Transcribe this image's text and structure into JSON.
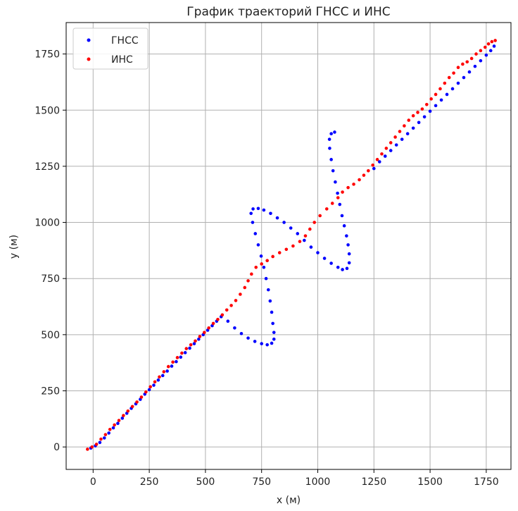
{
  "chart_data": {
    "type": "scatter",
    "title": "График траекторий ГНСС и ИНС",
    "xlabel": "x (м)",
    "ylabel": "y (м)",
    "xlim": [
      -120,
      1860
    ],
    "ylim": [
      -100,
      1890
    ],
    "xticks": [
      0,
      250,
      500,
      750,
      1000,
      1250,
      1500,
      1750
    ],
    "yticks": [
      0,
      250,
      500,
      750,
      1000,
      1250,
      1500,
      1750
    ],
    "grid": true,
    "legend_position": "top-left",
    "series": [
      {
        "name": "ГНСС",
        "color": "#0000ff",
        "points": [
          [
            -10,
            -5
          ],
          [
            10,
            5
          ],
          [
            30,
            20
          ],
          [
            50,
            40
          ],
          [
            70,
            62
          ],
          [
            90,
            85
          ],
          [
            110,
            105
          ],
          [
            130,
            128
          ],
          [
            150,
            150
          ],
          [
            170,
            172
          ],
          [
            190,
            192
          ],
          [
            210,
            212
          ],
          [
            230,
            235
          ],
          [
            250,
            255
          ],
          [
            270,
            275
          ],
          [
            290,
            298
          ],
          [
            310,
            318
          ],
          [
            330,
            338
          ],
          [
            350,
            360
          ],
          [
            370,
            380
          ],
          [
            390,
            400
          ],
          [
            410,
            420
          ],
          [
            430,
            440
          ],
          [
            450,
            460
          ],
          [
            470,
            480
          ],
          [
            490,
            500
          ],
          [
            510,
            520
          ],
          [
            530,
            540
          ],
          [
            550,
            560
          ],
          [
            570,
            580
          ],
          [
            600,
            560
          ],
          [
            630,
            530
          ],
          [
            660,
            505
          ],
          [
            690,
            485
          ],
          [
            720,
            470
          ],
          [
            750,
            460
          ],
          [
            775,
            455
          ],
          [
            795,
            462
          ],
          [
            805,
            480
          ],
          [
            805,
            510
          ],
          [
            800,
            550
          ],
          [
            795,
            600
          ],
          [
            788,
            650
          ],
          [
            780,
            700
          ],
          [
            770,
            750
          ],
          [
            760,
            800
          ],
          [
            748,
            850
          ],
          [
            735,
            900
          ],
          [
            722,
            950
          ],
          [
            710,
            1000
          ],
          [
            703,
            1040
          ],
          [
            712,
            1060
          ],
          [
            735,
            1062
          ],
          [
            760,
            1055
          ],
          [
            790,
            1040
          ],
          [
            820,
            1020
          ],
          [
            850,
            1000
          ],
          [
            880,
            975
          ],
          [
            910,
            950
          ],
          [
            940,
            920
          ],
          [
            970,
            890
          ],
          [
            1000,
            865
          ],
          [
            1030,
            840
          ],
          [
            1060,
            818
          ],
          [
            1090,
            800
          ],
          [
            1110,
            790
          ],
          [
            1130,
            795
          ],
          [
            1140,
            820
          ],
          [
            1140,
            860
          ],
          [
            1135,
            900
          ],
          [
            1128,
            940
          ],
          [
            1118,
            985
          ],
          [
            1108,
            1030
          ],
          [
            1098,
            1080
          ],
          [
            1088,
            1130
          ],
          [
            1078,
            1180
          ],
          [
            1068,
            1230
          ],
          [
            1060,
            1280
          ],
          [
            1053,
            1330
          ],
          [
            1052,
            1370
          ],
          [
            1060,
            1395
          ],
          [
            1075,
            1402
          ],
          [
            1250,
            1240
          ],
          [
            1275,
            1270
          ],
          [
            1300,
            1295
          ],
          [
            1325,
            1320
          ],
          [
            1350,
            1345
          ],
          [
            1375,
            1370
          ],
          [
            1400,
            1395
          ],
          [
            1425,
            1420
          ],
          [
            1450,
            1445
          ],
          [
            1475,
            1470
          ],
          [
            1500,
            1495
          ],
          [
            1525,
            1520
          ],
          [
            1550,
            1545
          ],
          [
            1575,
            1570
          ],
          [
            1600,
            1595
          ],
          [
            1625,
            1620
          ],
          [
            1650,
            1645
          ],
          [
            1675,
            1670
          ],
          [
            1700,
            1695
          ],
          [
            1725,
            1720
          ],
          [
            1750,
            1745
          ],
          [
            1770,
            1765
          ],
          [
            1785,
            1785
          ]
        ]
      },
      {
        "name": "ИНС",
        "color": "#ff0000",
        "points": [
          [
            -25,
            -10
          ],
          [
            -5,
            0
          ],
          [
            15,
            12
          ],
          [
            35,
            35
          ],
          [
            55,
            55
          ],
          [
            75,
            78
          ],
          [
            95,
            98
          ],
          [
            115,
            118
          ],
          [
            135,
            140
          ],
          [
            155,
            160
          ],
          [
            175,
            180
          ],
          [
            195,
            200
          ],
          [
            215,
            222
          ],
          [
            235,
            245
          ],
          [
            255,
            268
          ],
          [
            275,
            290
          ],
          [
            295,
            312
          ],
          [
            315,
            335
          ],
          [
            335,
            358
          ],
          [
            355,
            378
          ],
          [
            375,
            398
          ],
          [
            395,
            418
          ],
          [
            415,
            438
          ],
          [
            435,
            455
          ],
          [
            455,
            472
          ],
          [
            475,
            492
          ],
          [
            495,
            510
          ],
          [
            515,
            530
          ],
          [
            535,
            550
          ],
          [
            555,
            568
          ],
          [
            575,
            588
          ],
          [
            595,
            610
          ],
          [
            615,
            630
          ],
          [
            635,
            652
          ],
          [
            655,
            680
          ],
          [
            675,
            710
          ],
          [
            690,
            740
          ],
          [
            705,
            770
          ],
          [
            725,
            800
          ],
          [
            750,
            815
          ],
          [
            775,
            830
          ],
          [
            800,
            848
          ],
          [
            830,
            865
          ],
          [
            860,
            880
          ],
          [
            890,
            895
          ],
          [
            920,
            915
          ],
          [
            945,
            940
          ],
          [
            965,
            970
          ],
          [
            985,
            1000
          ],
          [
            1010,
            1030
          ],
          [
            1040,
            1060
          ],
          [
            1065,
            1085
          ],
          [
            1090,
            1110
          ],
          [
            1110,
            1135
          ],
          [
            1135,
            1155
          ],
          [
            1160,
            1170
          ],
          [
            1185,
            1190
          ],
          [
            1205,
            1210
          ],
          [
            1225,
            1230
          ],
          [
            1245,
            1255
          ],
          [
            1265,
            1280
          ],
          [
            1285,
            1305
          ],
          [
            1305,
            1330
          ],
          [
            1325,
            1355
          ],
          [
            1345,
            1380
          ],
          [
            1365,
            1405
          ],
          [
            1385,
            1430
          ],
          [
            1405,
            1455
          ],
          [
            1425,
            1475
          ],
          [
            1445,
            1490
          ],
          [
            1465,
            1505
          ],
          [
            1485,
            1525
          ],
          [
            1505,
            1550
          ],
          [
            1525,
            1570
          ],
          [
            1545,
            1595
          ],
          [
            1565,
            1620
          ],
          [
            1585,
            1645
          ],
          [
            1605,
            1665
          ],
          [
            1625,
            1690
          ],
          [
            1645,
            1705
          ],
          [
            1665,
            1715
          ],
          [
            1685,
            1730
          ],
          [
            1705,
            1750
          ],
          [
            1725,
            1765
          ],
          [
            1745,
            1780
          ],
          [
            1760,
            1795
          ],
          [
            1775,
            1805
          ],
          [
            1790,
            1810
          ]
        ]
      }
    ]
  }
}
